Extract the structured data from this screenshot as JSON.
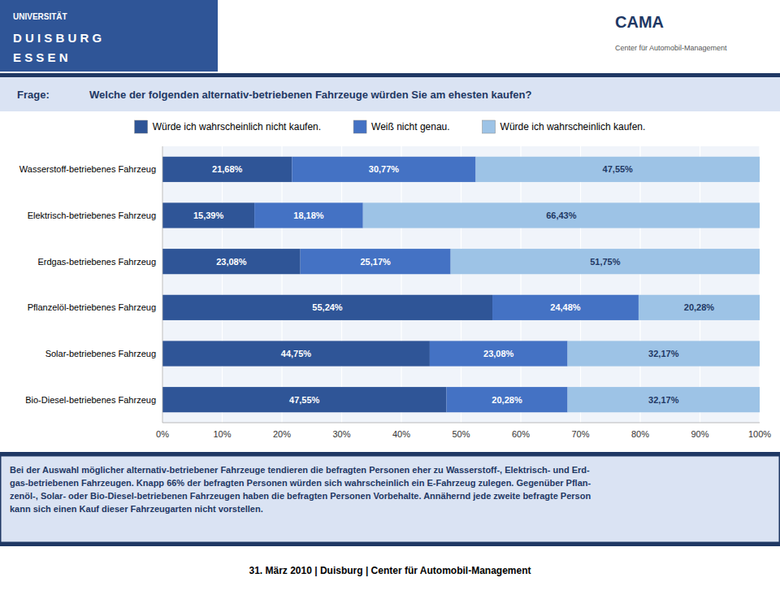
{
  "chart_data": {
    "type": "bar",
    "orientation": "horizontal",
    "stacked": true,
    "title": "Welche der folgenden alternativ-betriebenen Fahrzeuge würden Sie am ehesten kaufen?",
    "annotations": [
      "Frage:",
      "UNIVERSITÄT",
      "D U I S B U R G",
      "E S S E N",
      "CAMA",
      "Center für Automobil-Management",
      "Bei der Auswahl möglicher alternativ-betriebener Fahrzeuge tendieren die befragten Personen eher zu Wasserstoff-, Elektrisch- und Erd-\ngas-betriebenen Fahrzeugen. Knapp 66% der befragten Personen würden sich wahrscheinlich ein E-Fahrzeug zulegen. Gegenüber Pflan-\nzenöl-, Solar- oder Bio-Diesel-betriebenen Fahrzeugen haben die befragten Personen Vorbehalte. Annähernd jede zweite befragte Person\nkann sich einen Kauf dieser Fahrzeugarten nicht vorstellen.",
      "31. März 2010 | Duisburg | Center für Automobil-Management"
    ],
    "categories": [
      "Wasserstoff-betriebenes Fahrzeug",
      "Elektrisch-betriebenes Fahrzeug",
      "Erdgas-betriebenes Fahrzeug",
      "Pflanzelöl-betriebenes Fahrzeug",
      "Solar-betriebenes Fahrzeug",
      "Bio-Diesel-betriebenes Fahrzeug"
    ],
    "series": [
      {
        "name": "Würde ich wahrscheinlich nicht kaufen.",
        "color": "#2F5597",
        "values": [
          21.68,
          15.39,
          23.08,
          55.24,
          44.75,
          47.55
        ],
        "value_labels": [
          "21,68%",
          "15,39%",
          "23,08%",
          "55,24%",
          "44,75%",
          "47,55%"
        ]
      },
      {
        "name": "Weiß nicht genau.",
        "color": "#4472C4",
        "values": [
          30.77,
          18.18,
          25.17,
          24.48,
          23.08,
          20.28
        ],
        "value_labels": [
          "30,77%",
          "18,18%",
          "25,17%",
          "24,48%",
          "23,08%",
          "20,28%"
        ]
      },
      {
        "name": "Würde ich wahrscheinlich kaufen.",
        "color": "#9DC3E6",
        "values": [
          47.55,
          66.43,
          51.75,
          20.28,
          32.17,
          32.17
        ],
        "value_labels": [
          "47,55%",
          "66,43%",
          "51,75%",
          "20,28%",
          "32,17%",
          "32,17%"
        ]
      }
    ],
    "xlim": [
      0,
      100
    ],
    "xticks": [
      {
        "value": 0,
        "label": "0%"
      },
      {
        "value": 10,
        "label": "10%"
      },
      {
        "value": 20,
        "label": "20%"
      },
      {
        "value": 30,
        "label": "30%"
      },
      {
        "value": 40,
        "label": "40%"
      },
      {
        "value": 50,
        "label": "50%"
      },
      {
        "value": 60,
        "label": "60%"
      },
      {
        "value": 70,
        "label": "70%"
      },
      {
        "value": 80,
        "label": "80%"
      },
      {
        "value": 90,
        "label": "90%"
      },
      {
        "value": 100,
        "label": "100%"
      }
    ],
    "grid": true,
    "legend": "top",
    "data_labels": true
  }
}
